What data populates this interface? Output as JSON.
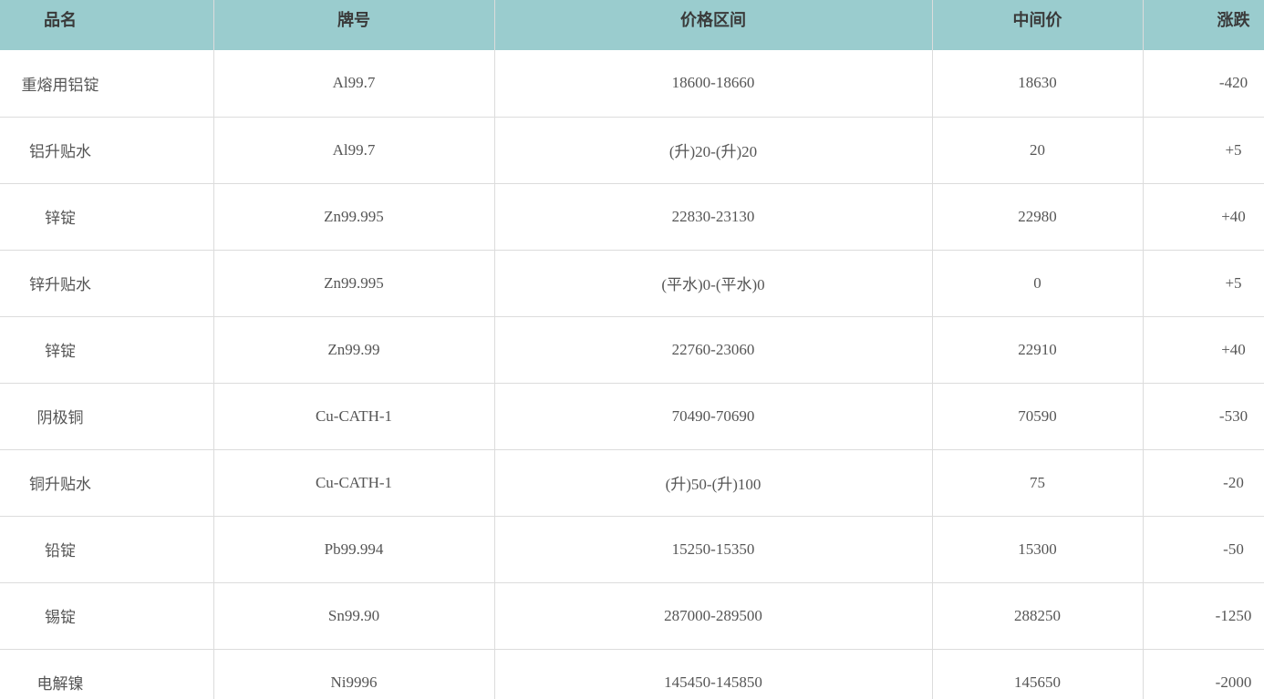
{
  "table": {
    "headers": [
      "品名",
      "牌号",
      "价格区间",
      "中间价",
      "涨跌"
    ],
    "rows": [
      [
        "重熔用铝锭",
        "Al99.7",
        "18600-18660",
        "18630",
        "-420"
      ],
      [
        "铝升贴水",
        "Al99.7",
        "(升)20-(升)20",
        "20",
        "+5"
      ],
      [
        "锌锭",
        "Zn99.995",
        "22830-23130",
        "22980",
        "+40"
      ],
      [
        "锌升贴水",
        "Zn99.995",
        "(平水)0-(平水)0",
        "0",
        "+5"
      ],
      [
        "锌锭",
        "Zn99.99",
        "22760-23060",
        "22910",
        "+40"
      ],
      [
        "阴极铜",
        "Cu-CATH-1",
        "70490-70690",
        "70590",
        "-530"
      ],
      [
        "铜升贴水",
        "Cu-CATH-1",
        "(升)50-(升)100",
        "75",
        "-20"
      ],
      [
        "铅锭",
        "Pb99.994",
        "15250-15350",
        "15300",
        "-50"
      ],
      [
        "锡锭",
        "Sn99.90",
        "287000-289500",
        "288250",
        "-1250"
      ],
      [
        "电解镍",
        "Ni9996",
        "145450-145850",
        "145650",
        "-2000"
      ]
    ]
  },
  "colors": {
    "header_bg": "#9accce",
    "border": "#dcdcdc",
    "text": "#555555"
  }
}
